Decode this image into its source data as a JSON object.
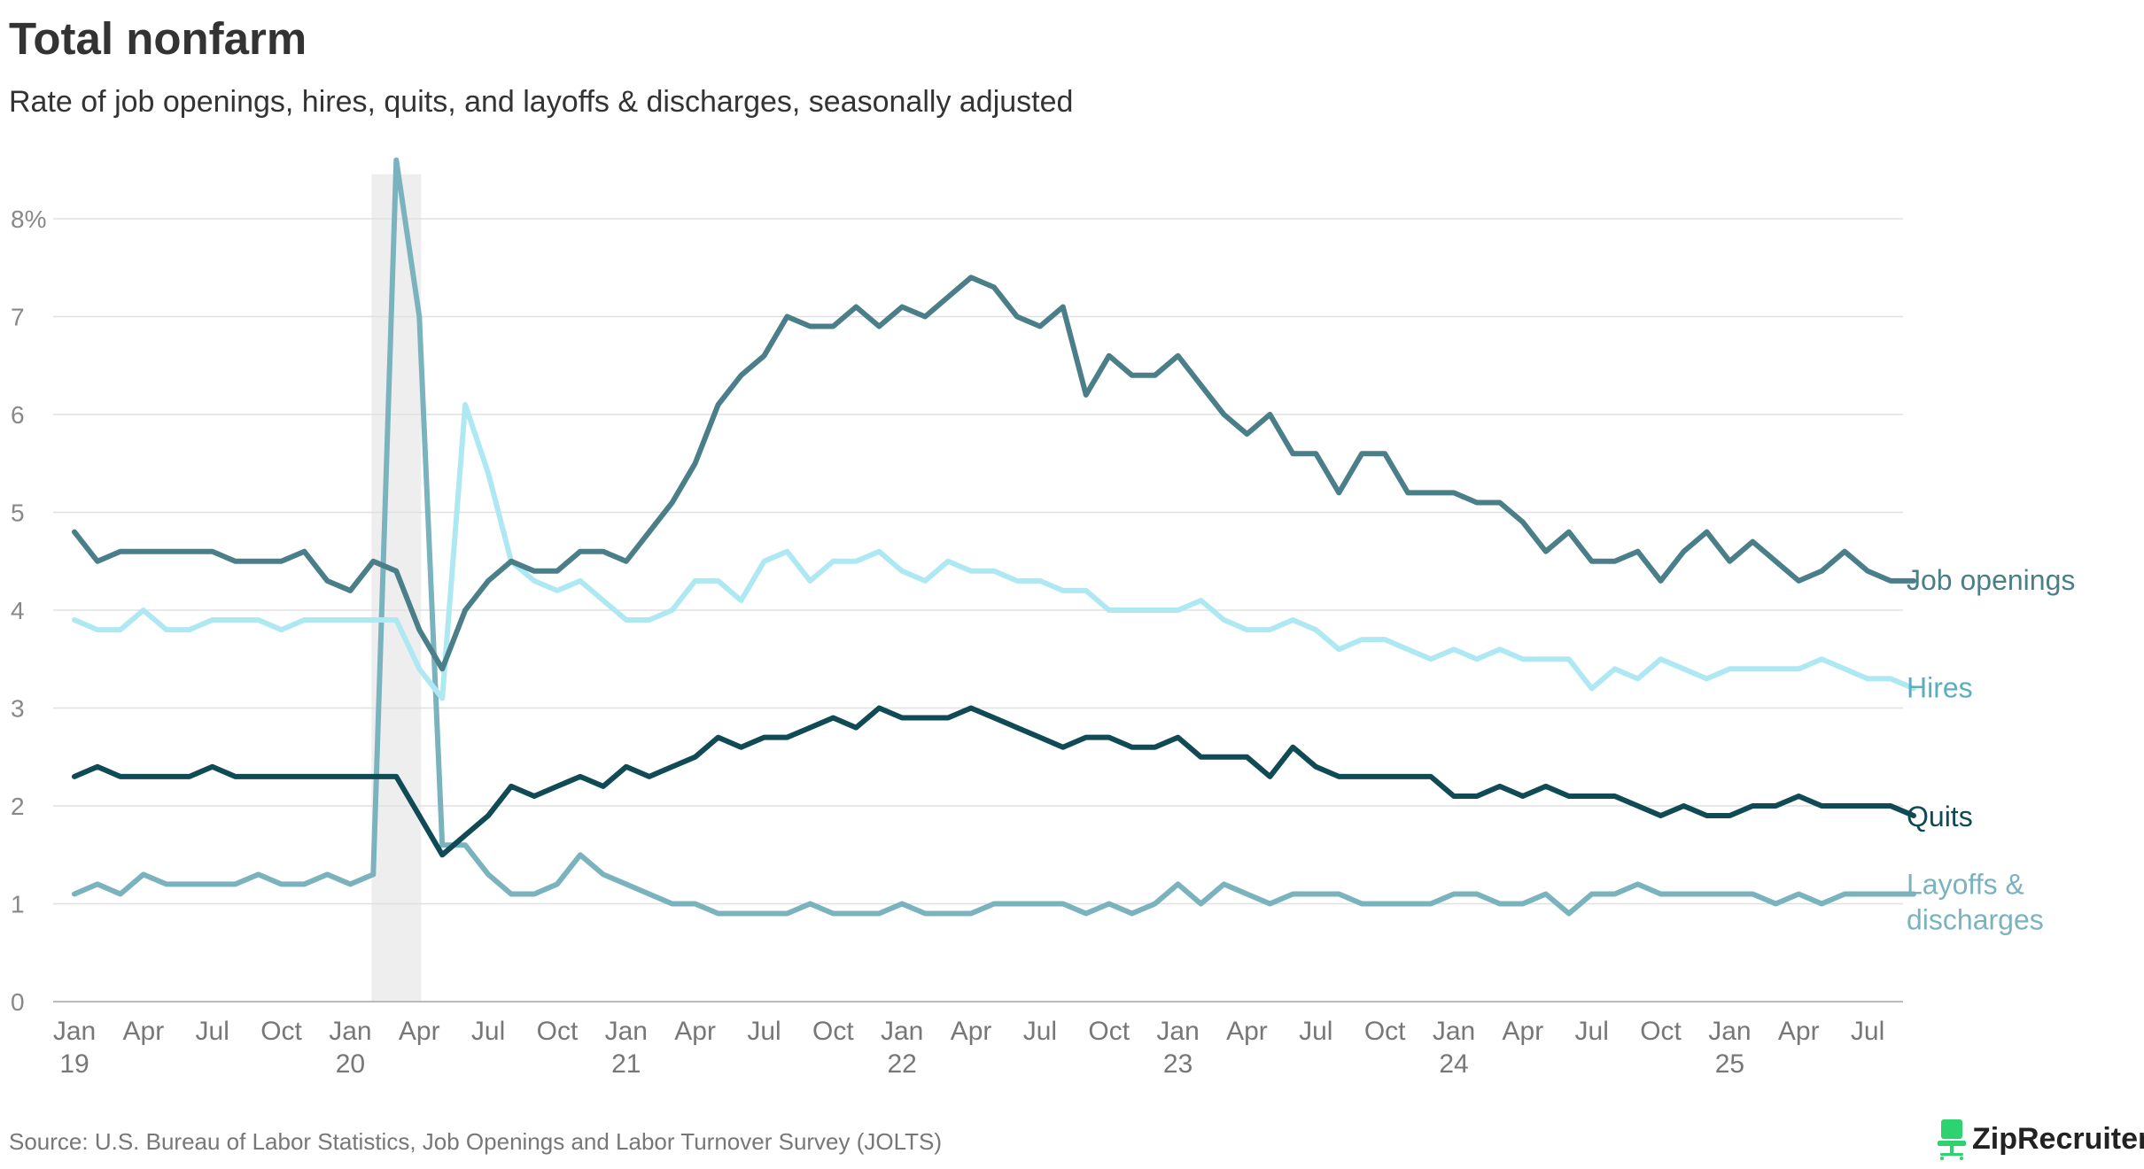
{
  "header": {
    "title": "Total nonfarm",
    "subtitle": "Rate of job openings, hires, quits, and layoffs & discharges, seasonally adjusted"
  },
  "footer": {
    "source": "Source: U.S. Bureau of Labor Statistics, Job Openings and Labor Turnover Survey (JOLTS)",
    "logo_text": "ZipRecruiter",
    "logo_icon": "chair-icon"
  },
  "colors": {
    "job_openings": "#4a7f89",
    "hires": "#aee8f2",
    "quits": "#0f4a55",
    "layoffs": "#7ab3bd",
    "grid": "#e0e0e0",
    "shade": "#eeeeee",
    "logo_green": "#2dd36f"
  },
  "chart_data": {
    "type": "line",
    "title": "Total nonfarm",
    "subtitle": "Rate of job openings, hires, quits, and layoffs & discharges, seasonally adjusted",
    "xlabel": "",
    "ylabel": "",
    "ylim": [
      0,
      8.5
    ],
    "y_ticks": [
      {
        "value": 0,
        "label": "0"
      },
      {
        "value": 1,
        "label": "1"
      },
      {
        "value": 2,
        "label": "2"
      },
      {
        "value": 3,
        "label": "3"
      },
      {
        "value": 4,
        "label": "4"
      },
      {
        "value": 5,
        "label": "5"
      },
      {
        "value": 6,
        "label": "6"
      },
      {
        "value": 7,
        "label": "7"
      },
      {
        "value": 8,
        "label": "8%"
      }
    ],
    "x_start": "2019-01",
    "x_end": "2025-08",
    "x_ticks": [
      {
        "month_index": 0,
        "label": "Jan",
        "year": "19"
      },
      {
        "month_index": 3,
        "label": "Apr",
        "year": ""
      },
      {
        "month_index": 6,
        "label": "Jul",
        "year": ""
      },
      {
        "month_index": 9,
        "label": "Oct",
        "year": ""
      },
      {
        "month_index": 12,
        "label": "Jan",
        "year": "20"
      },
      {
        "month_index": 15,
        "label": "Apr",
        "year": ""
      },
      {
        "month_index": 18,
        "label": "Jul",
        "year": ""
      },
      {
        "month_index": 21,
        "label": "Oct",
        "year": ""
      },
      {
        "month_index": 24,
        "label": "Jan",
        "year": "21"
      },
      {
        "month_index": 27,
        "label": "Apr",
        "year": ""
      },
      {
        "month_index": 30,
        "label": "Jul",
        "year": ""
      },
      {
        "month_index": 33,
        "label": "Oct",
        "year": ""
      },
      {
        "month_index": 36,
        "label": "Jan",
        "year": "22"
      },
      {
        "month_index": 39,
        "label": "Apr",
        "year": ""
      },
      {
        "month_index": 42,
        "label": "Jul",
        "year": ""
      },
      {
        "month_index": 45,
        "label": "Oct",
        "year": ""
      },
      {
        "month_index": 48,
        "label": "Jan",
        "year": "23"
      },
      {
        "month_index": 51,
        "label": "Apr",
        "year": ""
      },
      {
        "month_index": 54,
        "label": "Jul",
        "year": ""
      },
      {
        "month_index": 57,
        "label": "Oct",
        "year": ""
      },
      {
        "month_index": 60,
        "label": "Jan",
        "year": "24"
      },
      {
        "month_index": 63,
        "label": "Apr",
        "year": ""
      },
      {
        "month_index": 66,
        "label": "Jul",
        "year": ""
      },
      {
        "month_index": 69,
        "label": "Oct",
        "year": ""
      },
      {
        "month_index": 72,
        "label": "Jan",
        "year": "25"
      },
      {
        "month_index": 75,
        "label": "Apr",
        "year": ""
      },
      {
        "month_index": 78,
        "label": "Jul",
        "year": ""
      }
    ],
    "recession_shading": {
      "start_month_index": 13,
      "end_month_index": 15
    },
    "series": [
      {
        "name": "Job openings",
        "color_key": "job_openings",
        "values": [
          4.8,
          4.5,
          4.6,
          4.6,
          4.6,
          4.6,
          4.6,
          4.5,
          4.5,
          4.5,
          4.6,
          4.3,
          4.2,
          4.5,
          4.4,
          3.8,
          3.4,
          4.0,
          4.3,
          4.5,
          4.4,
          4.4,
          4.6,
          4.6,
          4.5,
          4.8,
          5.1,
          5.5,
          6.1,
          6.4,
          6.6,
          7.0,
          6.9,
          6.9,
          7.1,
          6.9,
          7.1,
          7.0,
          7.2,
          7.4,
          7.3,
          7.0,
          6.9,
          7.1,
          6.2,
          6.6,
          6.4,
          6.4,
          6.6,
          6.3,
          6.0,
          5.8,
          6.0,
          5.6,
          5.6,
          5.2,
          5.6,
          5.6,
          5.2,
          5.2,
          5.2,
          5.1,
          5.1,
          4.9,
          4.6,
          4.8,
          4.5,
          4.5,
          4.6,
          4.3,
          4.6,
          4.8,
          4.5,
          4.7,
          4.5,
          4.3,
          4.4,
          4.6,
          4.4,
          4.3,
          4.3
        ]
      },
      {
        "name": "Hires",
        "color_key": "hires",
        "values": [
          3.9,
          3.8,
          3.8,
          4.0,
          3.8,
          3.8,
          3.9,
          3.9,
          3.9,
          3.8,
          3.9,
          3.9,
          3.9,
          3.9,
          3.9,
          3.4,
          3.1,
          6.1,
          5.4,
          4.5,
          4.3,
          4.2,
          4.3,
          4.1,
          3.9,
          3.9,
          4.0,
          4.3,
          4.3,
          4.1,
          4.5,
          4.6,
          4.3,
          4.5,
          4.5,
          4.6,
          4.4,
          4.3,
          4.5,
          4.4,
          4.4,
          4.3,
          4.3,
          4.2,
          4.2,
          4.0,
          4.0,
          4.0,
          4.0,
          4.1,
          3.9,
          3.8,
          3.8,
          3.9,
          3.8,
          3.6,
          3.7,
          3.7,
          3.6,
          3.5,
          3.6,
          3.5,
          3.6,
          3.5,
          3.5,
          3.5,
          3.2,
          3.4,
          3.3,
          3.5,
          3.4,
          3.3,
          3.4,
          3.4,
          3.4,
          3.4,
          3.5,
          3.4,
          3.3,
          3.3,
          3.2
        ]
      },
      {
        "name": "Quits",
        "color_key": "quits",
        "values": [
          2.3,
          2.4,
          2.3,
          2.3,
          2.3,
          2.3,
          2.4,
          2.3,
          2.3,
          2.3,
          2.3,
          2.3,
          2.3,
          2.3,
          2.3,
          1.9,
          1.5,
          1.7,
          1.9,
          2.2,
          2.1,
          2.2,
          2.3,
          2.2,
          2.4,
          2.3,
          2.4,
          2.5,
          2.7,
          2.6,
          2.7,
          2.7,
          2.8,
          2.9,
          2.8,
          3.0,
          2.9,
          2.9,
          2.9,
          3.0,
          2.9,
          2.8,
          2.7,
          2.6,
          2.7,
          2.7,
          2.6,
          2.6,
          2.7,
          2.5,
          2.5,
          2.5,
          2.3,
          2.6,
          2.4,
          2.3,
          2.3,
          2.3,
          2.3,
          2.3,
          2.1,
          2.1,
          2.2,
          2.1,
          2.2,
          2.1,
          2.1,
          2.1,
          2.0,
          1.9,
          2.0,
          1.9,
          1.9,
          2.0,
          2.0,
          2.1,
          2.0,
          2.0,
          2.0,
          2.0,
          1.9
        ]
      },
      {
        "name": "Layoffs & discharges",
        "color_key": "layoffs",
        "values": [
          1.1,
          1.2,
          1.1,
          1.3,
          1.2,
          1.2,
          1.2,
          1.2,
          1.3,
          1.2,
          1.2,
          1.3,
          1.2,
          1.3,
          8.6,
          7.0,
          1.6,
          1.6,
          1.3,
          1.1,
          1.1,
          1.2,
          1.5,
          1.3,
          1.2,
          1.1,
          1.0,
          1.0,
          0.9,
          0.9,
          0.9,
          0.9,
          1.0,
          0.9,
          0.9,
          0.9,
          1.0,
          0.9,
          0.9,
          0.9,
          1.0,
          1.0,
          1.0,
          1.0,
          0.9,
          1.0,
          0.9,
          1.0,
          1.2,
          1.0,
          1.2,
          1.1,
          1.0,
          1.1,
          1.1,
          1.1,
          1.0,
          1.0,
          1.0,
          1.0,
          1.1,
          1.1,
          1.0,
          1.0,
          1.1,
          0.9,
          1.1,
          1.1,
          1.2,
          1.1,
          1.1,
          1.1,
          1.1,
          1.1,
          1.0,
          1.1,
          1.0,
          1.1,
          1.1,
          1.1,
          1.1
        ]
      }
    ],
    "legend": [
      {
        "key": "job_openings",
        "lines": [
          "Job openings"
        ]
      },
      {
        "key": "hires",
        "lines": [
          "Hires"
        ]
      },
      {
        "key": "quits",
        "lines": [
          "Quits"
        ]
      },
      {
        "key": "layoffs",
        "lines": [
          "Layoffs &",
          "discharges"
        ]
      }
    ],
    "legend_placement": "right-end-labels"
  }
}
